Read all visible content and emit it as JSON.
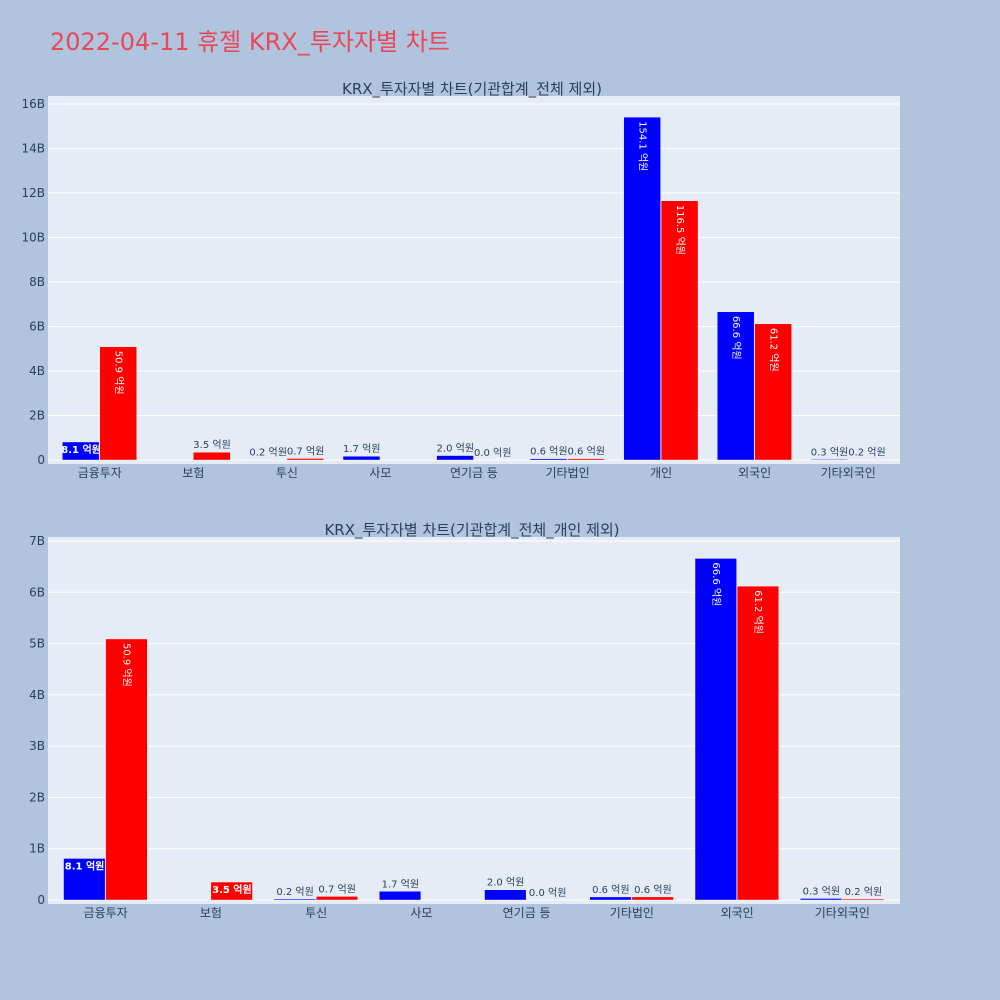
{
  "page": {
    "title": "2022-04-11 휴젤 KRX_투자자별 차트"
  },
  "colors": {
    "background": "#b0c4de",
    "plot_bg": "#e5ecf6",
    "series_1": "#0000ff",
    "series_2": "#ff0000",
    "title": "#e8485a",
    "text": "#2a3f5f"
  },
  "chart_data": [
    {
      "type": "bar",
      "title": "KRX_투자자별 차트(기관합계_전체 제외)",
      "xlabel": "",
      "ylabel": "",
      "ylim": [
        0,
        16200000000
      ],
      "y_ticks": [
        {
          "value": 0,
          "label": "0"
        },
        {
          "value": 2000000000,
          "label": "2B"
        },
        {
          "value": 4000000000,
          "label": "4B"
        },
        {
          "value": 6000000000,
          "label": "6B"
        },
        {
          "value": 8000000000,
          "label": "8B"
        },
        {
          "value": 10000000000,
          "label": "10B"
        },
        {
          "value": 12000000000,
          "label": "12B"
        },
        {
          "value": 14000000000,
          "label": "14B"
        },
        {
          "value": 16000000000,
          "label": "16B"
        }
      ],
      "grid": true,
      "legend": "none",
      "categories": [
        "금융투자",
        "보험",
        "투신",
        "사모",
        "연기금 등",
        "기타법인",
        "개인",
        "외국인",
        "기타외국인"
      ],
      "series": [
        {
          "color": "#0000ff",
          "values": [
            810000000,
            0,
            20000000,
            170000000,
            200000000,
            60000000,
            15410000000,
            6660000000,
            30000000
          ],
          "labels": [
            "8.1 억원",
            "",
            "0.2 억원",
            "1.7 억원",
            "2.0 억원",
            "0.6 억원",
            "154.1 억원",
            "66.6 억원",
            "0.3 억원"
          ]
        },
        {
          "color": "#ff0000",
          "values": [
            5090000000,
            350000000,
            70000000,
            0,
            0,
            60000000,
            11650000000,
            6120000000,
            20000000
          ],
          "labels": [
            "50.9 억원",
            "3.5 억원",
            "0.7 억원",
            "",
            "0.0 억원",
            "0.6 억원",
            "116.5 억원",
            "61.2 억원",
            "0.2 억원"
          ]
        }
      ]
    },
    {
      "type": "bar",
      "title": "KRX_투자자별 차트(기관합계_전체_개인 제외)",
      "xlabel": "",
      "ylabel": "",
      "ylim": [
        0,
        7000000000
      ],
      "y_ticks": [
        {
          "value": 0,
          "label": "0"
        },
        {
          "value": 1000000000,
          "label": "1B"
        },
        {
          "value": 2000000000,
          "label": "2B"
        },
        {
          "value": 3000000000,
          "label": "3B"
        },
        {
          "value": 4000000000,
          "label": "4B"
        },
        {
          "value": 5000000000,
          "label": "5B"
        },
        {
          "value": 6000000000,
          "label": "6B"
        },
        {
          "value": 7000000000,
          "label": "7B"
        }
      ],
      "grid": true,
      "legend": "none",
      "categories": [
        "금융투자",
        "보험",
        "투신",
        "사모",
        "연기금 등",
        "기타법인",
        "외국인",
        "기타외국인"
      ],
      "series": [
        {
          "color": "#0000ff",
          "values": [
            810000000,
            0,
            20000000,
            170000000,
            200000000,
            60000000,
            6660000000,
            30000000
          ],
          "labels": [
            "8.1 억원",
            "",
            "0.2 억원",
            "1.7 억원",
            "2.0 억원",
            "0.6 억원",
            "66.6 억원",
            "0.3 억원"
          ]
        },
        {
          "color": "#ff0000",
          "values": [
            5090000000,
            350000000,
            70000000,
            0,
            0,
            60000000,
            6120000000,
            20000000
          ],
          "labels": [
            "50.9 억원",
            "3.5 억원",
            "0.7 억원",
            "",
            "0.0 억원",
            "0.6 억원",
            "61.2 억원",
            "0.2 억원"
          ]
        }
      ]
    }
  ]
}
